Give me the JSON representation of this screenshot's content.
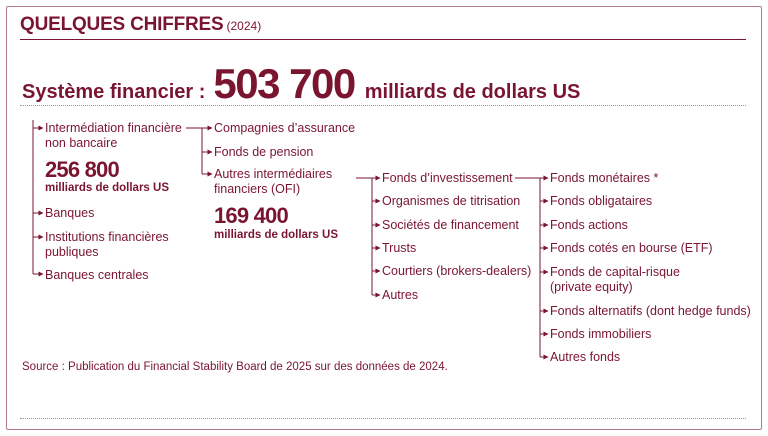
{
  "header": {
    "title": "QUELQUES CHIFFRES",
    "year": "(2024)"
  },
  "total": {
    "label": "Système financier :",
    "value": "503 700",
    "unit": "milliards de dollars US"
  },
  "col1": {
    "nbfi_label_1": "Intermédiation financière",
    "nbfi_label_2": "non bancaire",
    "nbfi_value": "256 800",
    "nbfi_unit": "milliards de dollars US",
    "banks": "Banques",
    "inst_1": "Institutions financières",
    "inst_2": "publiques",
    "central": "Banques centrales"
  },
  "col2": {
    "insurance": "Compagnies d’assurance",
    "pension": "Fonds de pension",
    "ofi_1": "Autres intermédiaires",
    "ofi_2": "financiers (OFI)",
    "ofi_value": "169 400",
    "ofi_unit": "milliards de dollars US"
  },
  "col3": {
    "items": [
      "Fonds d’investissement",
      "Organismes de titrisation",
      "Sociétés de financement",
      "Trusts",
      "Courtiers (brokers-dealers)",
      "Autres"
    ]
  },
  "col4": {
    "items": [
      "Fonds monétaires *",
      "Fonds obligataires",
      "Fonds actions",
      "Fonds cotés en bourse (ETF)"
    ],
    "vc_1": "Fonds de capital-risque",
    "vc_2": "(private equity)",
    "items_after": [
      "Fonds alternatifs (dont hedge funds)",
      "Fonds immobiliers",
      "Autres fonds"
    ]
  },
  "source": "Source : Publication du Financial Stability Board de 2025 sur des données de 2024.",
  "colors": {
    "accent": "#7a1530",
    "dotted": "#a68c93"
  }
}
